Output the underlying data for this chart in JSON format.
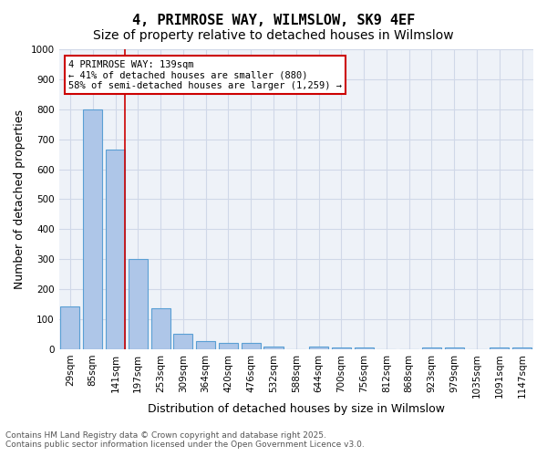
{
  "title": "4, PRIMROSE WAY, WILMSLOW, SK9 4EF",
  "subtitle": "Size of property relative to detached houses in Wilmslow",
  "bar_values": [
    143,
    800,
    665,
    300,
    135,
    52,
    28,
    20,
    20,
    10,
    0,
    8,
    5,
    5,
    0,
    0,
    5,
    5,
    0,
    5,
    5
  ],
  "bin_labels": [
    "29sqm",
    "85sqm",
    "141sqm",
    "197sqm",
    "253sqm",
    "309sqm",
    "364sqm",
    "420sqm",
    "476sqm",
    "532sqm",
    "588sqm",
    "644sqm",
    "700sqm",
    "756sqm",
    "812sqm",
    "868sqm",
    "923sqm",
    "979sqm",
    "1035sqm",
    "1091sqm",
    "1147sqm"
  ],
  "bar_color": "#aec6e8",
  "bar_edge_color": "#5a9fd4",
  "vline_x": 2,
  "vline_color": "#cc0000",
  "ylabel": "Number of detached properties",
  "xlabel": "Distribution of detached houses by size in Wilmslow",
  "ylim": [
    0,
    1000
  ],
  "yticks": [
    0,
    100,
    200,
    300,
    400,
    500,
    600,
    700,
    800,
    900,
    1000
  ],
  "annotation_text": "4 PRIMROSE WAY: 139sqm\n← 41% of detached houses are smaller (880)\n58% of semi-detached houses are larger (1,259) →",
  "box_color": "#cc0000",
  "grid_color": "#d0d8e8",
  "bg_color": "#eef2f8",
  "footer_line1": "Contains HM Land Registry data © Crown copyright and database right 2025.",
  "footer_line2": "Contains public sector information licensed under the Open Government Licence v3.0.",
  "title_fontsize": 11,
  "subtitle_fontsize": 10,
  "tick_fontsize": 7.5,
  "label_fontsize": 9
}
